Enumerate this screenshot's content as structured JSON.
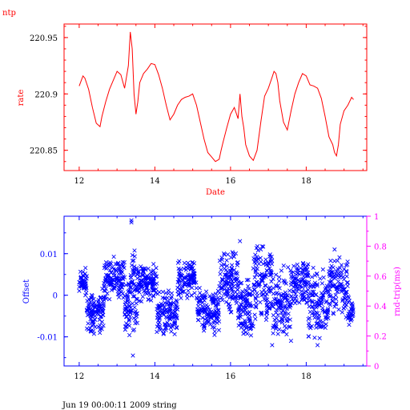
{
  "page": {
    "corner_label": "ntp",
    "footer": "Jun 19 00:00:11 2009 string"
  },
  "colors": {
    "top": "#ff0000",
    "offset": "#0000ff",
    "rndtrip": "#ff00ff",
    "text": "#000000"
  },
  "chart_data": [
    {
      "type": "line",
      "title": "",
      "xlabel": "Date",
      "ylabel": "rate",
      "xlim": [
        11.6,
        19.6
      ],
      "ylim": [
        220.832,
        220.962
      ],
      "xticks": [
        12,
        14,
        16,
        18
      ],
      "xtick_labels": [
        "12",
        "14",
        "16",
        "18"
      ],
      "yticks": [
        220.85,
        220.9,
        220.95
      ],
      "ytick_labels": [
        "220.85",
        "220.9",
        "220.95"
      ],
      "grid": false,
      "series": [
        {
          "x": [
            12.0,
            12.1,
            12.15,
            12.25,
            12.35,
            12.45,
            12.55,
            12.6,
            12.7,
            12.8,
            12.9,
            13.0,
            13.1,
            13.2,
            13.3,
            13.35,
            13.4,
            13.45,
            13.5,
            13.55,
            13.6,
            13.7,
            13.75,
            13.8,
            13.9,
            14.0,
            14.1,
            14.2,
            14.3,
            14.4,
            14.5,
            14.6,
            14.7,
            14.8,
            14.9,
            15.0,
            15.1,
            15.2,
            15.3,
            15.4,
            15.5,
            15.6,
            15.7,
            15.75,
            15.8,
            15.9,
            16.0,
            16.1,
            16.2,
            16.25,
            16.3,
            16.35,
            16.4,
            16.5,
            16.6,
            16.7,
            16.8,
            16.9,
            17.0,
            17.1,
            17.15,
            17.2,
            17.25,
            17.3,
            17.4,
            17.5,
            17.6,
            17.7,
            17.8,
            17.9,
            18.0,
            18.1,
            18.2,
            18.3,
            18.4,
            18.5,
            18.6,
            18.7,
            18.75,
            18.8,
            18.85,
            18.9,
            19.0,
            19.1,
            19.2,
            19.25
          ],
          "y": [
            220.907,
            220.916,
            220.914,
            220.904,
            220.888,
            220.874,
            220.871,
            220.88,
            220.893,
            220.904,
            220.912,
            220.92,
            220.917,
            220.905,
            220.925,
            220.955,
            220.94,
            220.9,
            220.882,
            220.893,
            220.91,
            220.918,
            220.92,
            220.922,
            220.927,
            220.926,
            220.917,
            220.905,
            220.89,
            220.877,
            220.882,
            220.89,
            220.895,
            220.897,
            220.898,
            220.9,
            220.89,
            220.875,
            220.86,
            220.848,
            220.844,
            220.84,
            220.842,
            220.85,
            220.857,
            220.87,
            220.882,
            220.888,
            220.878,
            220.9,
            220.88,
            220.87,
            220.855,
            220.845,
            220.841,
            220.85,
            220.875,
            220.898,
            220.905,
            220.915,
            220.92,
            220.918,
            220.91,
            220.894,
            220.875,
            220.868,
            220.885,
            220.9,
            220.91,
            220.918,
            220.916,
            220.908,
            220.907,
            220.905,
            220.896,
            220.88,
            220.862,
            220.855,
            220.848,
            220.845,
            220.855,
            220.873,
            220.885,
            220.89,
            220.897,
            220.895
          ]
        }
      ]
    },
    {
      "type": "scatter",
      "title": "",
      "xlabel": "",
      "ylabel": "Offset",
      "ylabel_right": "rnd-trip(ms)",
      "xlim": [
        11.6,
        19.6
      ],
      "ylim": [
        -0.017,
        0.019
      ],
      "y2lim": [
        0,
        1
      ],
      "xticks": [
        12,
        14,
        16,
        18
      ],
      "xtick_labels": [
        "12",
        "14",
        "16",
        "18"
      ],
      "yticks": [
        -0.01,
        0,
        0.01
      ],
      "ytick_labels": [
        "-0.01",
        "0",
        "0.01"
      ],
      "y2ticks": [
        0,
        0.2,
        0.4,
        0.6,
        0.8,
        1
      ],
      "y2tick_labels": [
        "0",
        "0.2",
        "0.4",
        "0.6",
        "0.8",
        "1"
      ],
      "grid": false,
      "marker": "x",
      "clusters": [
        {
          "x0": 12.0,
          "x1": 12.2,
          "center": 0.003,
          "spread": 0.0045,
          "n": 45
        },
        {
          "x0": 12.2,
          "x1": 12.65,
          "center": -0.004,
          "spread": 0.006,
          "n": 110
        },
        {
          "x0": 12.65,
          "x1": 13.2,
          "center": 0.004,
          "spread": 0.0055,
          "n": 120
        },
        {
          "x0": 13.2,
          "x1": 13.35,
          "center": -0.003,
          "spread": 0.007,
          "n": 45
        },
        {
          "x0": 13.35,
          "x1": 13.55,
          "center": 0.001,
          "spread": 0.012,
          "n": 60
        },
        {
          "x0": 13.55,
          "x1": 14.05,
          "center": 0.003,
          "spread": 0.005,
          "n": 110
        },
        {
          "x0": 14.05,
          "x1": 14.6,
          "center": -0.004,
          "spread": 0.006,
          "n": 120
        },
        {
          "x0": 14.6,
          "x1": 15.1,
          "center": 0.004,
          "spread": 0.005,
          "n": 110
        },
        {
          "x0": 15.1,
          "x1": 15.7,
          "center": -0.004,
          "spread": 0.006,
          "n": 130
        },
        {
          "x0": 15.7,
          "x1": 16.2,
          "center": 0.003,
          "spread": 0.008,
          "n": 120
        },
        {
          "x0": 16.2,
          "x1": 16.6,
          "center": -0.003,
          "spread": 0.008,
          "n": 100
        },
        {
          "x0": 16.6,
          "x1": 17.1,
          "center": 0.003,
          "spread": 0.01,
          "n": 120
        },
        {
          "x0": 17.1,
          "x1": 17.6,
          "center": -0.002,
          "spread": 0.01,
          "n": 110
        },
        {
          "x0": 17.6,
          "x1": 18.05,
          "center": 0.003,
          "spread": 0.006,
          "n": 100
        },
        {
          "x0": 18.05,
          "x1": 18.6,
          "center": -0.002,
          "spread": 0.01,
          "n": 120
        },
        {
          "x0": 18.6,
          "x1": 19.1,
          "center": 0.002,
          "spread": 0.008,
          "n": 110
        },
        {
          "x0": 19.1,
          "x1": 19.25,
          "center": -0.004,
          "spread": 0.005,
          "n": 30
        }
      ],
      "outliers": [
        {
          "x": 13.38,
          "y": 0.018
        },
        {
          "x": 13.38,
          "y": 0.0175
        },
        {
          "x": 13.42,
          "y": -0.0145
        },
        {
          "x": 16.25,
          "y": 0.013
        },
        {
          "x": 16.8,
          "y": 0.011
        },
        {
          "x": 17.1,
          "y": -0.012
        },
        {
          "x": 18.3,
          "y": -0.012
        },
        {
          "x": 18.75,
          "y": 0.011
        }
      ]
    }
  ]
}
